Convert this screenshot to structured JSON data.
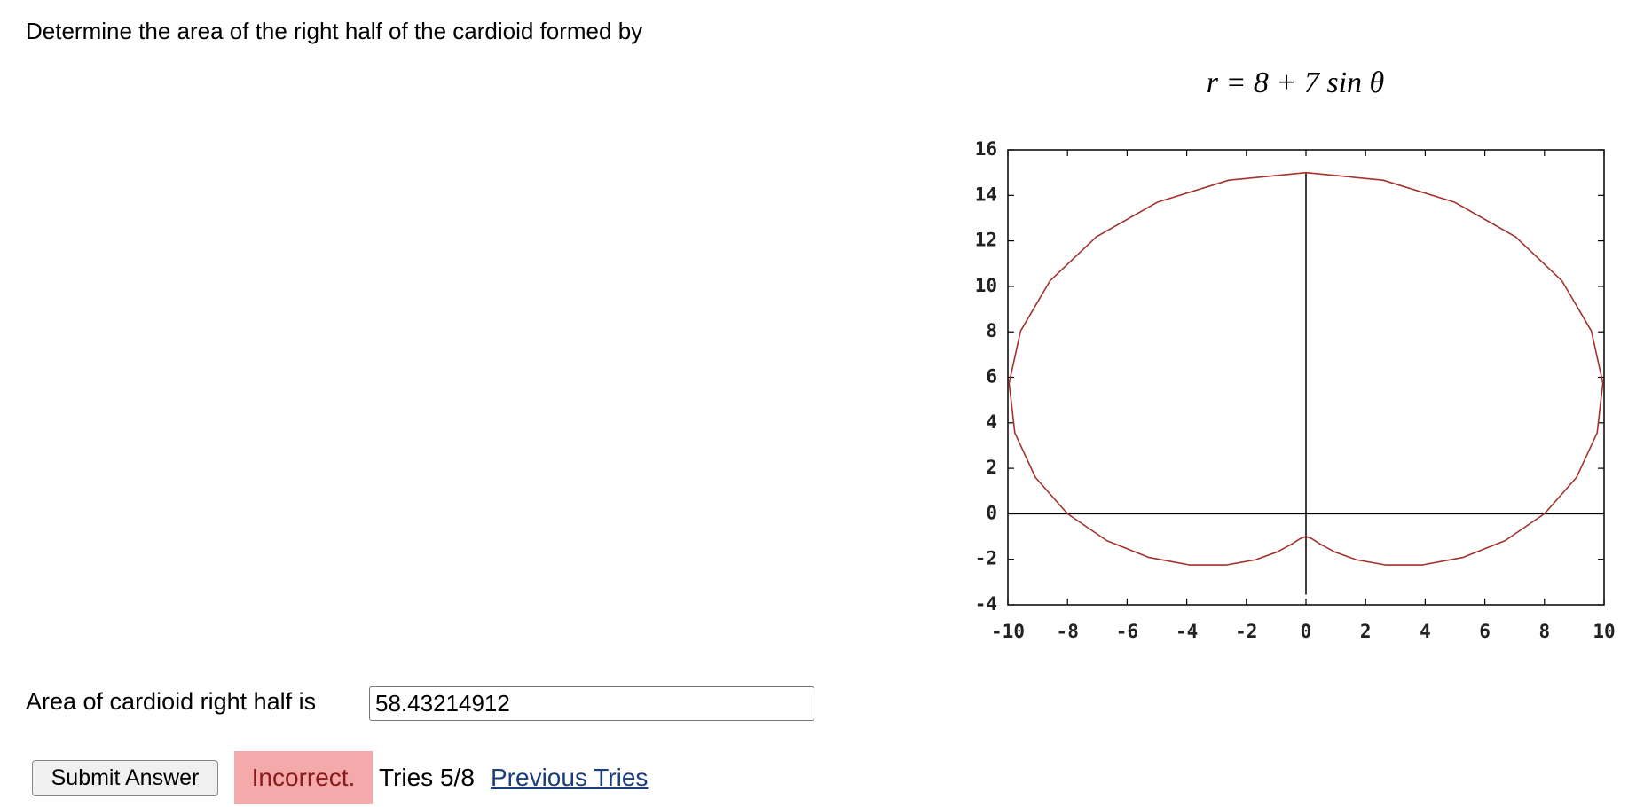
{
  "question": "Determine the area of the right half of the cardioid formed by",
  "equation": "r = 8 + 7 sin θ",
  "chart_data": {
    "type": "line",
    "x": [
      8,
      9.075,
      9.767,
      9.959,
      9.575,
      8.589,
      7.031,
      4.986,
      2.586,
      0,
      -2.586,
      -4.986,
      -7.031,
      -8.589,
      -9.575,
      -9.959,
      -9.767,
      -9.075,
      -8,
      -6.681,
      -5.268,
      -3.897,
      -2.681,
      -1.696,
      -0.969,
      -0.486,
      -0.192,
      0,
      0.192,
      0.486,
      0.969,
      1.696,
      2.681,
      3.897,
      5.268,
      6.681,
      8
    ],
    "y": [
      0,
      1.6,
      3.555,
      5.75,
      8.035,
      10.236,
      12.178,
      13.699,
      14.667,
      15,
      14.667,
      13.699,
      12.178,
      10.236,
      8.035,
      5.75,
      3.555,
      1.6,
      0,
      -1.178,
      -1.917,
      -2.25,
      -2.25,
      -2.021,
      -1.678,
      -1.336,
      -1.089,
      -1,
      -1.089,
      -1.336,
      -1.678,
      -2.021,
      -2.25,
      -2.25,
      -1.917,
      -1.178,
      0
    ],
    "color": "#a3332b",
    "xlim": [
      -10,
      10
    ],
    "ylim": [
      -4,
      16
    ],
    "xticks": [
      -10,
      -8,
      -6,
      -4,
      -2,
      0,
      2,
      4,
      6,
      8,
      10
    ],
    "yticks": [
      -4,
      -2,
      0,
      2,
      4,
      6,
      8,
      10,
      12,
      14,
      16
    ]
  },
  "answer_label": "Area of cardioid right half is",
  "answer_value": "58.43214912",
  "submit": "Submit Answer",
  "status": "Incorrect.",
  "tries": "Tries 5/8",
  "previous_tries": "Previous Tries"
}
